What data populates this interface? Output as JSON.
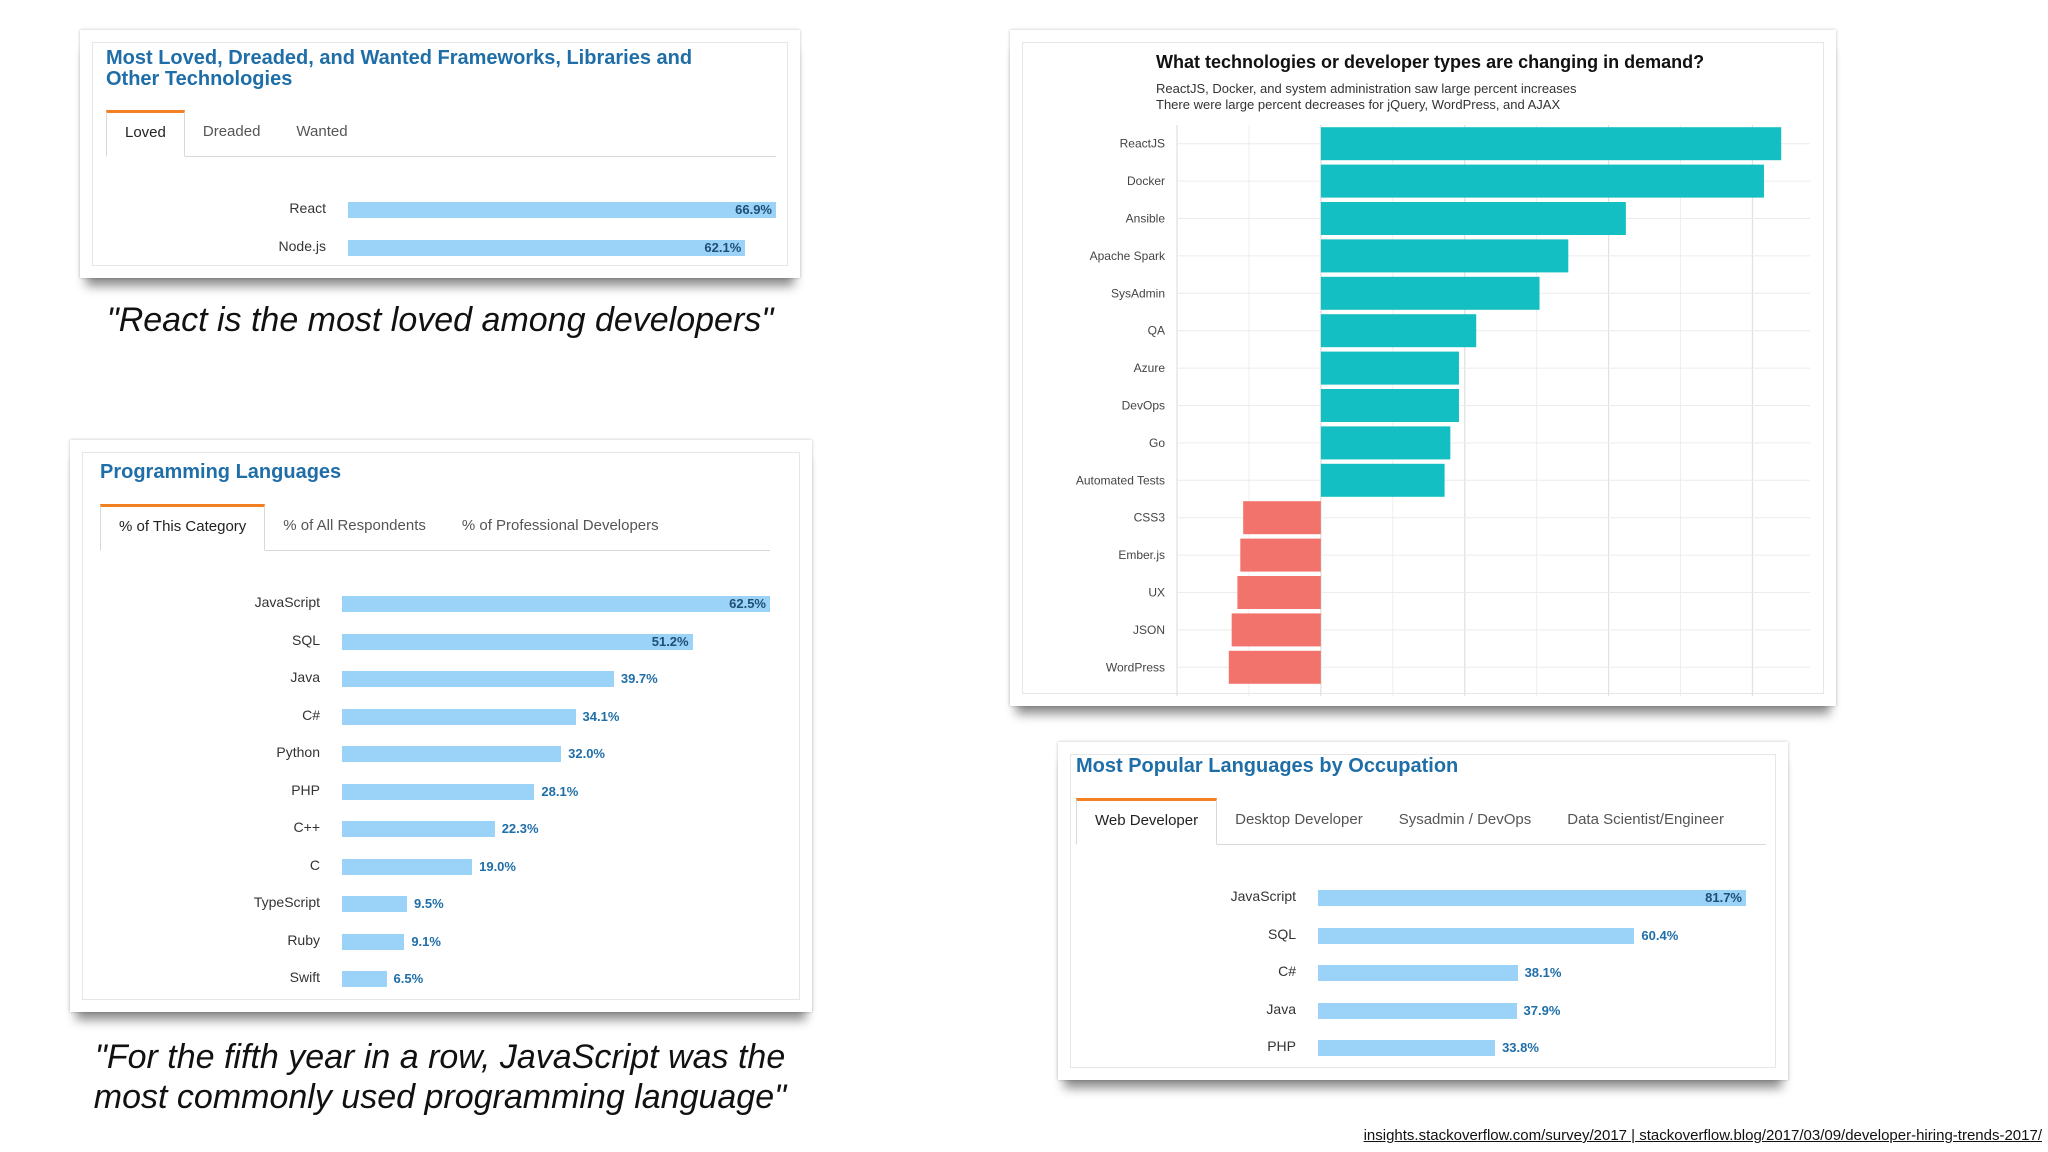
{
  "card1": {
    "title": "Most Loved, Dreaded, and Wanted Frameworks, Libraries and Other Technologies",
    "tabs": [
      "Loved",
      "Dreaded",
      "Wanted"
    ],
    "active_tab": 0,
    "chart_data": {
      "type": "bar",
      "categories": [
        "React",
        "Node.js"
      ],
      "values": [
        66.9,
        62.1
      ],
      "value_labels": [
        "66.9%",
        "62.1%"
      ]
    }
  },
  "quote1": "\"React is the most loved among developers\"",
  "card2": {
    "title": "Programming Languages",
    "tabs": [
      "% of This Category",
      "% of All Respondents",
      "% of Professional Developers"
    ],
    "active_tab": 0,
    "chart_data": {
      "type": "bar",
      "categories": [
        "JavaScript",
        "SQL",
        "Java",
        "C#",
        "Python",
        "PHP",
        "C++",
        "C",
        "TypeScript",
        "Ruby",
        "Swift"
      ],
      "values": [
        62.5,
        51.2,
        39.7,
        34.1,
        32.0,
        28.1,
        22.3,
        19.0,
        9.5,
        9.1,
        6.5
      ],
      "value_labels": [
        "62.5%",
        "51.2%",
        "39.7%",
        "34.1%",
        "32.0%",
        "28.1%",
        "22.3%",
        "19.0%",
        "9.5%",
        "9.1%",
        "6.5%"
      ]
    }
  },
  "quote2_line1": "\"For the fifth year in a row, JavaScript was the",
  "quote2_line2": "most commonly used programming language\"",
  "card3": {
    "title": "What technologies or developer types are changing in demand?",
    "subtitle1": "ReactJS, Docker, and system administration saw large percent increases",
    "subtitle2": "There were large percent decreases for jQuery, WordPress, and AJAX",
    "chart_data": {
      "type": "bar",
      "orientation": "horizontal",
      "categories": [
        "ReactJS",
        "Docker",
        "Ansible",
        "Apache Spark",
        "SysAdmin",
        "QA",
        "Azure",
        "DevOps",
        "Go",
        "Automated Tests",
        "CSS3",
        "Ember.js",
        "UX",
        "JSON",
        "WordPress"
      ],
      "values": [
        160,
        154,
        106,
        86,
        76,
        54,
        48,
        48,
        45,
        43,
        -27,
        -28,
        -29,
        -31,
        -32
      ],
      "xlim": [
        -50,
        170
      ],
      "grid": true,
      "colors": {
        "positive": "#13bfc2",
        "negative": "#f2736c"
      }
    }
  },
  "card4": {
    "title": "Most Popular Languages by Occupation",
    "tabs": [
      "Web Developer",
      "Desktop Developer",
      "Sysadmin / DevOps",
      "Data Scientist/Engineer"
    ],
    "active_tab": 0,
    "chart_data": {
      "type": "bar",
      "categories": [
        "JavaScript",
        "SQL",
        "C#",
        "Java",
        "PHP"
      ],
      "values": [
        81.7,
        60.4,
        38.1,
        37.9,
        33.8
      ],
      "value_labels": [
        "81.7%",
        "60.4%",
        "38.1%",
        "37.9%",
        "33.8%"
      ]
    }
  },
  "footer": "insights.stackoverflow.com/survey/2017 | stackoverflow.blog/2017/03/09/developer-hiring-trends-2017/"
}
